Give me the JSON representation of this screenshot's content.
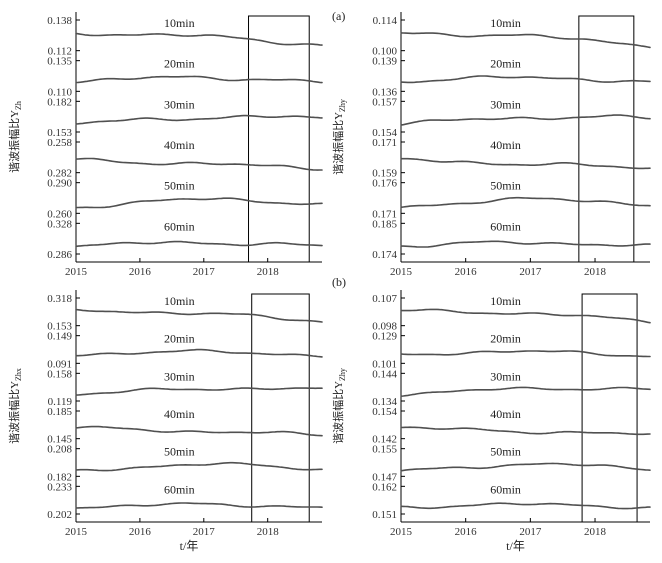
{
  "chart_data": [
    {
      "id": "a-left",
      "type": "line",
      "ylabel": "谐波振幅比Y",
      "ylabel_sub": "Zh",
      "x_ticks": [
        "2015",
        "2016",
        "2017",
        "2018"
      ],
      "xlabel": "",
      "box": [
        2017.7,
        2018.65
      ],
      "series": [
        {
          "name": "10min",
          "ticks": [
            "0.138",
            "0.112"
          ]
        },
        {
          "name": "20min",
          "ticks": [
            "0.135",
            "0.110"
          ]
        },
        {
          "name": "30min",
          "ticks": [
            "0.182",
            "0.153"
          ]
        },
        {
          "name": "40min",
          "ticks": [
            "0.258",
            "0.282"
          ]
        },
        {
          "name": "50min",
          "ticks": [
            "0.290",
            "0.260"
          ]
        },
        {
          "name": "60min",
          "ticks": [
            "0.328",
            "0.286"
          ]
        }
      ]
    },
    {
      "id": "a-right",
      "type": "line",
      "ylabel": "谐波振幅比Y",
      "ylabel_sub": "Zhy",
      "x_ticks": [
        "2015",
        "2016",
        "2017",
        "2018"
      ],
      "xlabel": "",
      "box": [
        2017.75,
        2018.6
      ],
      "series": [
        {
          "name": "10min",
          "ticks": [
            "0.114",
            "0.100"
          ]
        },
        {
          "name": "20min",
          "ticks": [
            "0.139",
            "0.136"
          ]
        },
        {
          "name": "30min",
          "ticks": [
            "0.157",
            "0.154"
          ]
        },
        {
          "name": "40min",
          "ticks": [
            "0.171",
            "0.159"
          ]
        },
        {
          "name": "50min",
          "ticks": [
            "0.176",
            "0.171"
          ]
        },
        {
          "name": "60min",
          "ticks": [
            "0.185",
            "0.174"
          ]
        }
      ]
    },
    {
      "id": "b-left",
      "type": "line",
      "ylabel": "谐波振幅比Y",
      "ylabel_sub": "Zhx",
      "x_ticks": [
        "2015",
        "2016",
        "2017",
        "2018"
      ],
      "xlabel": "t/年",
      "box": [
        2017.75,
        2018.65
      ],
      "series": [
        {
          "name": "10min",
          "ticks": [
            "0.318",
            "0.153"
          ]
        },
        {
          "name": "20min",
          "ticks": [
            "0.149",
            "0.091"
          ]
        },
        {
          "name": "30min",
          "ticks": [
            "0.158",
            "0.119"
          ]
        },
        {
          "name": "40min",
          "ticks": [
            "0.185",
            "0.145"
          ]
        },
        {
          "name": "50min",
          "ticks": [
            "0.208",
            "0.182"
          ]
        },
        {
          "name": "60min",
          "ticks": [
            "0.233",
            "0.202"
          ]
        }
      ]
    },
    {
      "id": "b-right",
      "type": "line",
      "ylabel": "谐波振幅比Y",
      "ylabel_sub": "Zhy",
      "x_ticks": [
        "2015",
        "2016",
        "2017",
        "2018"
      ],
      "xlabel": "t/年",
      "box": [
        2017.8,
        2018.65
      ],
      "series": [
        {
          "name": "10min",
          "ticks": [
            "0.107",
            "0.098"
          ]
        },
        {
          "name": "20min",
          "ticks": [
            "0.129",
            "0.101"
          ]
        },
        {
          "name": "30min",
          "ticks": [
            "0.144",
            "0.134"
          ]
        },
        {
          "name": "40min",
          "ticks": [
            "0.154",
            "0.142"
          ]
        },
        {
          "name": "50min",
          "ticks": [
            "0.155",
            "0.147"
          ]
        },
        {
          "name": "60min",
          "ticks": [
            "0.162",
            "0.151"
          ]
        }
      ]
    }
  ],
  "tags": {
    "a": "(a)",
    "b": "(b)"
  }
}
